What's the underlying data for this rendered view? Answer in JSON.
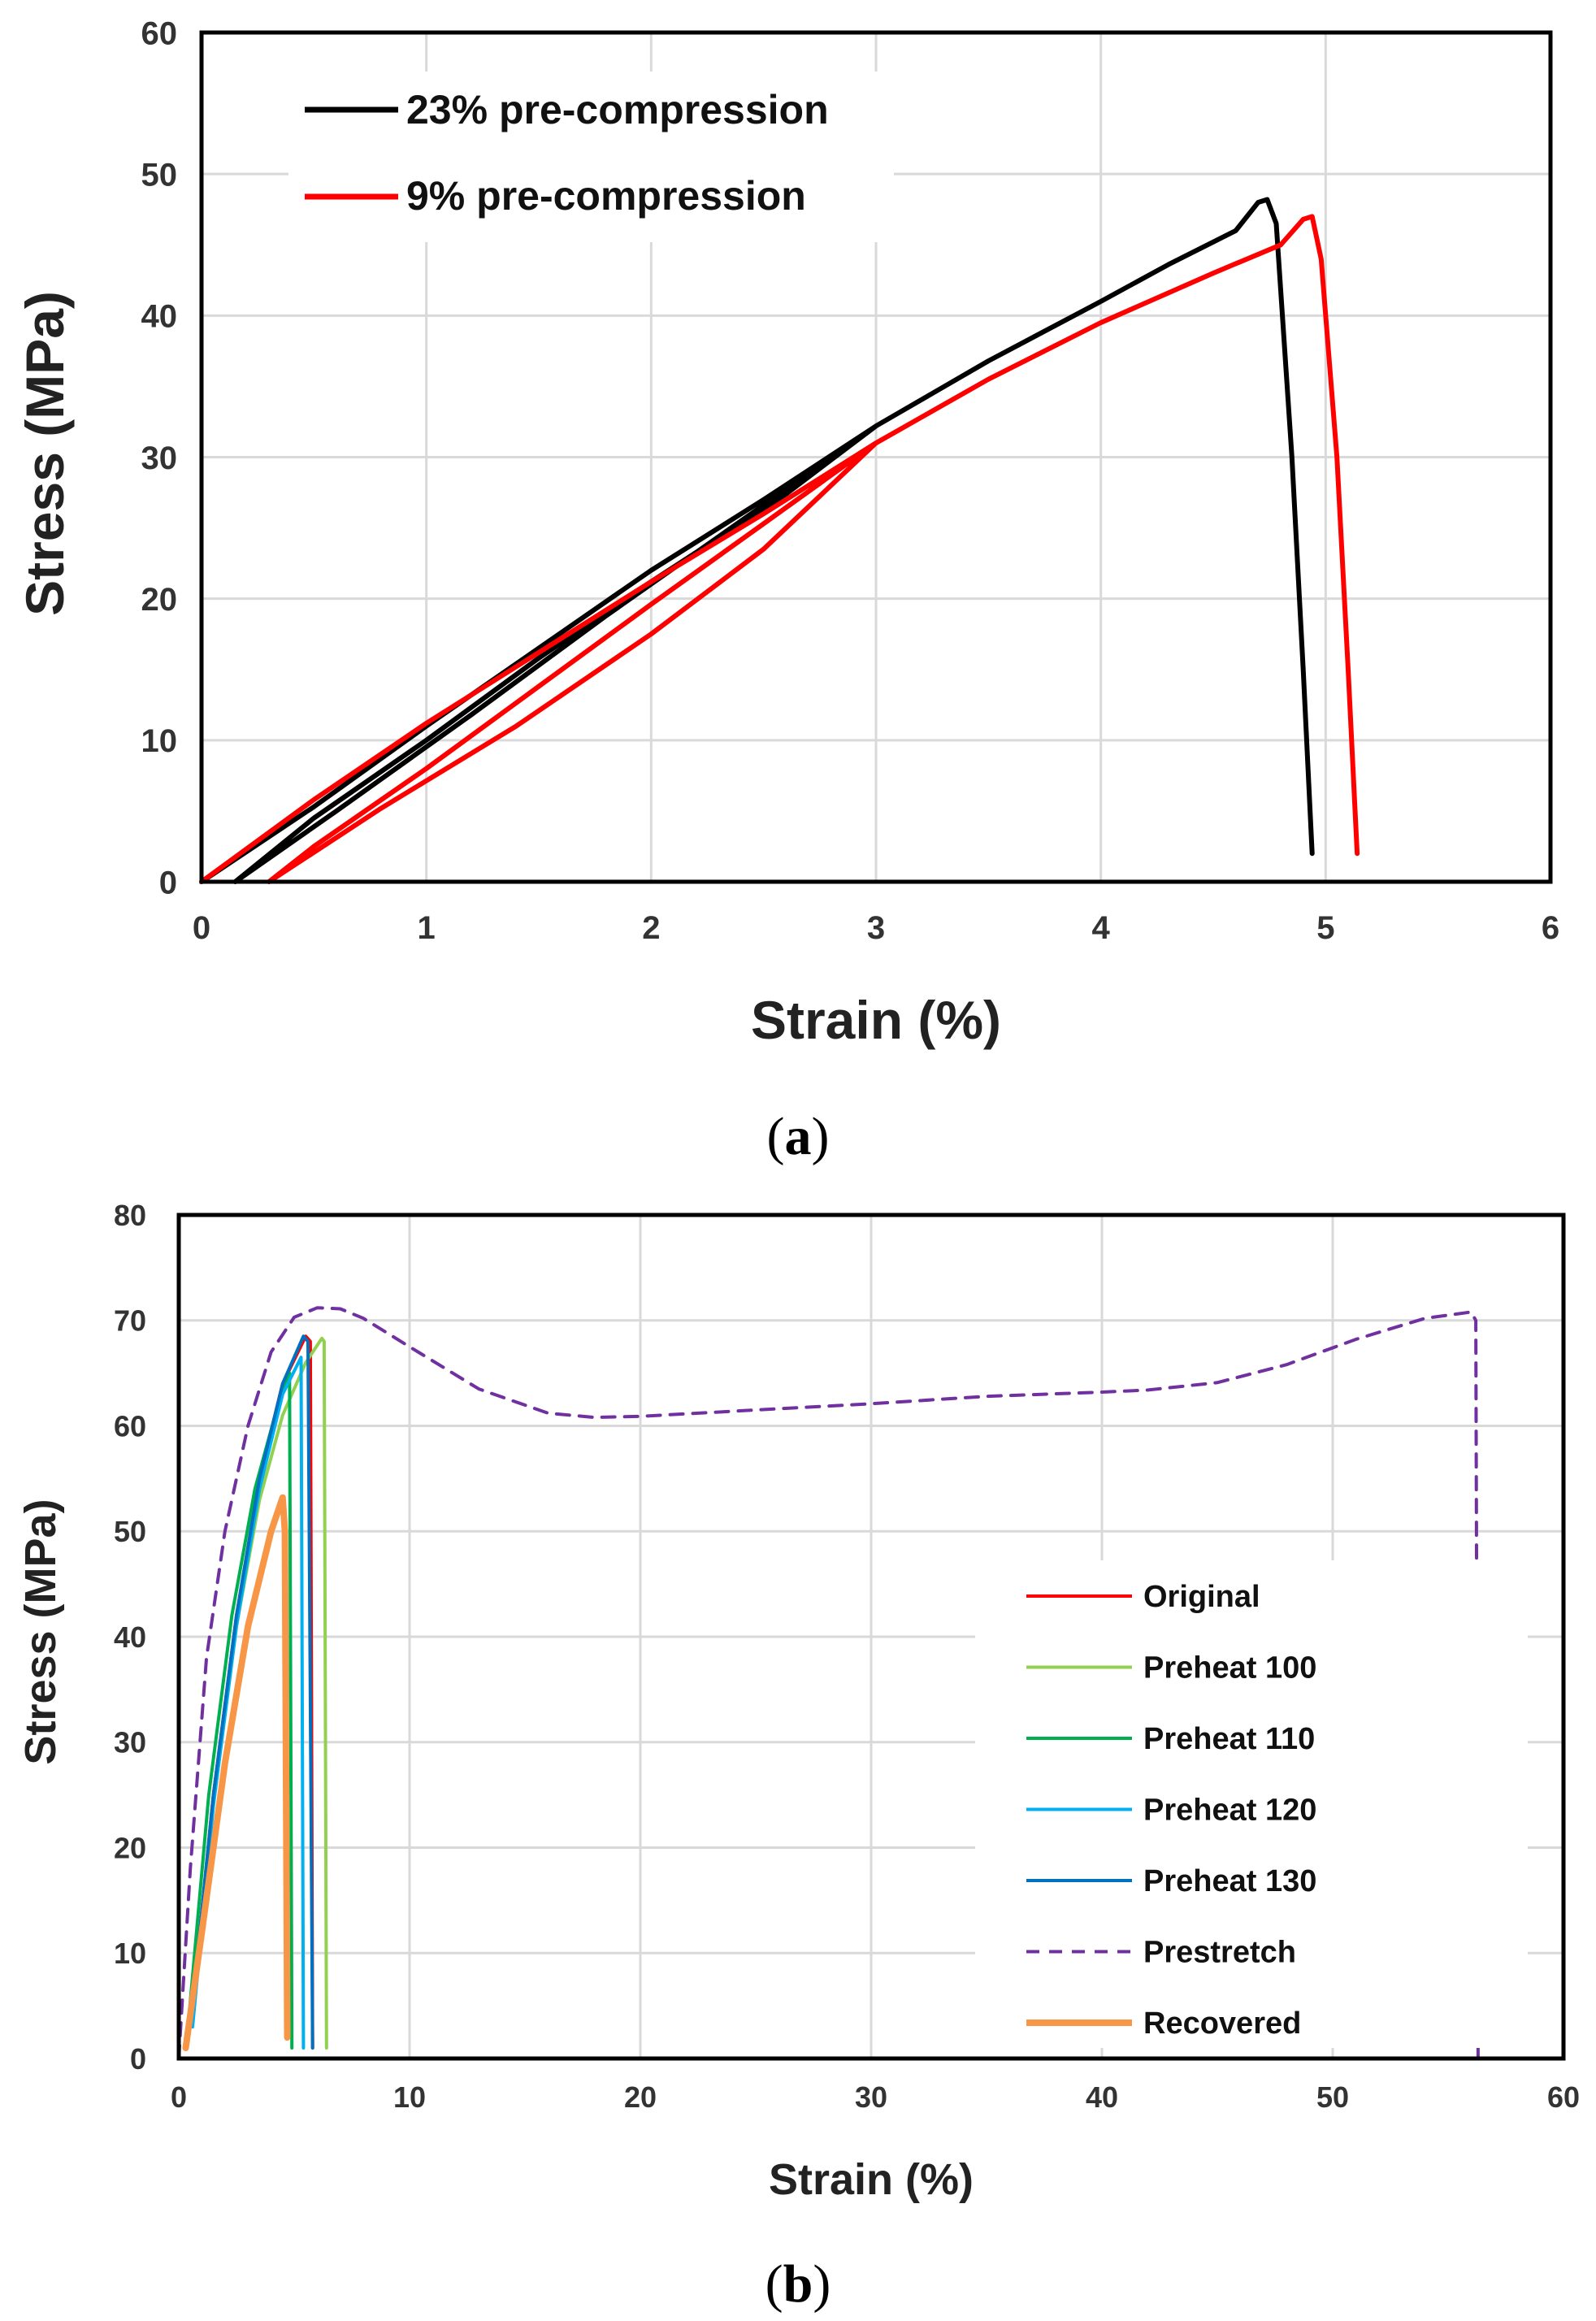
{
  "chart_data": [
    {
      "type": "line",
      "panel": "(a)",
      "xlabel": "Strain (%)",
      "ylabel": "Stress (MPa)",
      "xlim": [
        0,
        6
      ],
      "ylim": [
        0,
        60
      ],
      "xticks": [
        "0",
        "1",
        "2",
        "3",
        "4",
        "5",
        "6"
      ],
      "yticks": [
        "0",
        "10",
        "20",
        "30",
        "40",
        "50",
        "60"
      ],
      "grid": true,
      "legend_position": "top-left",
      "series": [
        {
          "name": "23% pre-compression",
          "color": "#000000",
          "dashed": false,
          "points": [
            [
              0.0,
              0
            ],
            [
              0.5,
              5.3
            ],
            [
              1.0,
              11.0
            ],
            [
              1.5,
              16.5
            ],
            [
              2.0,
              22.0
            ],
            [
              2.5,
              27.0
            ],
            [
              3.0,
              32.2
            ],
            [
              2.6,
              27.4
            ],
            [
              2.0,
              21.2
            ],
            [
              1.5,
              15.8
            ],
            [
              1.0,
              10.0
            ],
            [
              0.5,
              4.5
            ],
            [
              0.15,
              0
            ],
            [
              0.6,
              5.0
            ],
            [
              1.2,
              11.8
            ],
            [
              1.8,
              18.8
            ],
            [
              2.4,
              25.5
            ],
            [
              3.0,
              32.2
            ],
            [
              3.5,
              36.8
            ],
            [
              4.0,
              41.0
            ],
            [
              4.3,
              43.6
            ],
            [
              4.6,
              46.0
            ],
            [
              4.7,
              48.0
            ],
            [
              4.74,
              48.2
            ],
            [
              4.78,
              46.5
            ],
            [
              4.85,
              30.0
            ],
            [
              4.9,
              15.0
            ],
            [
              4.94,
              2.0
            ]
          ]
        },
        {
          "name": "9% pre-compression",
          "color": "#ff0000",
          "dashed": false,
          "points": [
            [
              0.0,
              0
            ],
            [
              0.5,
              5.8
            ],
            [
              1.0,
              11.2
            ],
            [
              1.5,
              16.2
            ],
            [
              2.0,
              21.2
            ],
            [
              2.5,
              26.0
            ],
            [
              3.0,
              31.0
            ],
            [
              2.5,
              25.3
            ],
            [
              2.0,
              19.6
            ],
            [
              1.5,
              13.8
            ],
            [
              1.0,
              8.0
            ],
            [
              0.5,
              2.5
            ],
            [
              0.3,
              0
            ],
            [
              0.8,
              5.2
            ],
            [
              1.4,
              11.0
            ],
            [
              2.0,
              17.5
            ],
            [
              2.5,
              23.5
            ],
            [
              3.0,
              31.0
            ],
            [
              3.5,
              35.5
            ],
            [
              4.0,
              39.5
            ],
            [
              4.5,
              43.0
            ],
            [
              4.8,
              45.0
            ],
            [
              4.9,
              46.8
            ],
            [
              4.94,
              47.0
            ],
            [
              4.98,
              44.0
            ],
            [
              5.05,
              30.0
            ],
            [
              5.1,
              15.0
            ],
            [
              5.14,
              2.0
            ]
          ]
        }
      ]
    },
    {
      "type": "line",
      "panel": "(b)",
      "xlabel": "Strain (%)",
      "ylabel": "Stress (MPa)",
      "xlim": [
        0,
        60
      ],
      "ylim": [
        0,
        80
      ],
      "xticks": [
        "0",
        "10",
        "20",
        "30",
        "40",
        "50",
        "60"
      ],
      "yticks": [
        "0",
        "10",
        "20",
        "30",
        "40",
        "50",
        "60",
        "70",
        "80"
      ],
      "grid": true,
      "legend_position": "right",
      "series": [
        {
          "name": "Original",
          "color": "#ff0000",
          "dashed": false,
          "width": 4,
          "points": [
            [
              0.5,
              3
            ],
            [
              1.5,
              25
            ],
            [
              2.5,
              42
            ],
            [
              3.5,
              55
            ],
            [
              4.5,
              64
            ],
            [
              5.5,
              68.5
            ],
            [
              5.7,
              68
            ],
            [
              5.8,
              1
            ]
          ]
        },
        {
          "name": "Preheat 100",
          "color": "#92d050",
          "dashed": false,
          "width": 4,
          "points": [
            [
              0.5,
              3
            ],
            [
              1.5,
              24
            ],
            [
              2.5,
              41
            ],
            [
              3.5,
              53
            ],
            [
              4.5,
              61
            ],
            [
              5.5,
              66
            ],
            [
              6.2,
              68.3
            ],
            [
              6.3,
              68
            ],
            [
              6.4,
              1
            ]
          ]
        },
        {
          "name": "Preheat 110",
          "color": "#00b050",
          "dashed": false,
          "width": 4,
          "points": [
            [
              0.4,
              3
            ],
            [
              1.3,
              25
            ],
            [
              2.3,
              42
            ],
            [
              3.3,
              54
            ],
            [
              4.3,
              62
            ],
            [
              4.8,
              65
            ],
            [
              4.9,
              1
            ]
          ]
        },
        {
          "name": "Preheat 120",
          "color": "#00b0f0",
          "dashed": false,
          "width": 4,
          "points": [
            [
              0.6,
              3
            ],
            [
              1.5,
              24
            ],
            [
              2.5,
              41
            ],
            [
              3.5,
              54
            ],
            [
              4.5,
              63
            ],
            [
              5.3,
              66.5
            ],
            [
              5.4,
              1
            ]
          ]
        },
        {
          "name": "Preheat 130",
          "color": "#0070c0",
          "dashed": false,
          "width": 4,
          "points": [
            [
              0.5,
              3
            ],
            [
              1.5,
              25
            ],
            [
              2.5,
              42
            ],
            [
              3.5,
              55
            ],
            [
              4.5,
              64
            ],
            [
              5.4,
              68.5
            ],
            [
              5.6,
              68
            ],
            [
              5.8,
              1
            ]
          ]
        },
        {
          "name": "Prestretch",
          "color": "#7030a0",
          "dashed": true,
          "width": 4,
          "points": [
            [
              0,
              0
            ],
            [
              0.5,
              18
            ],
            [
              1.2,
              38
            ],
            [
              2,
              50
            ],
            [
              3,
              60
            ],
            [
              4,
              67
            ],
            [
              5,
              70.3
            ],
            [
              6,
              71.2
            ],
            [
              7,
              71.1
            ],
            [
              8,
              70.2
            ],
            [
              10,
              67.5
            ],
            [
              13,
              63.5
            ],
            [
              16,
              61.2
            ],
            [
              18,
              60.8
            ],
            [
              20,
              60.9
            ],
            [
              25,
              61.5
            ],
            [
              30,
              62.1
            ],
            [
              35,
              62.8
            ],
            [
              40,
              63.2
            ],
            [
              42,
              63.4
            ],
            [
              45,
              64.1
            ],
            [
              48,
              65.8
            ],
            [
              51,
              68.2
            ],
            [
              54,
              70.2
            ],
            [
              56,
              70.8
            ],
            [
              56.2,
              70
            ],
            [
              56.3,
              0
            ]
          ]
        },
        {
          "name": "Recovered",
          "color": "#f79646",
          "dashed": false,
          "width": 8,
          "points": [
            [
              0.3,
              1
            ],
            [
              1,
              12
            ],
            [
              2,
              28
            ],
            [
              3,
              41
            ],
            [
              4,
              50
            ],
            [
              4.5,
              53.2
            ],
            [
              4.6,
              50
            ],
            [
              4.7,
              2
            ]
          ]
        }
      ]
    }
  ]
}
